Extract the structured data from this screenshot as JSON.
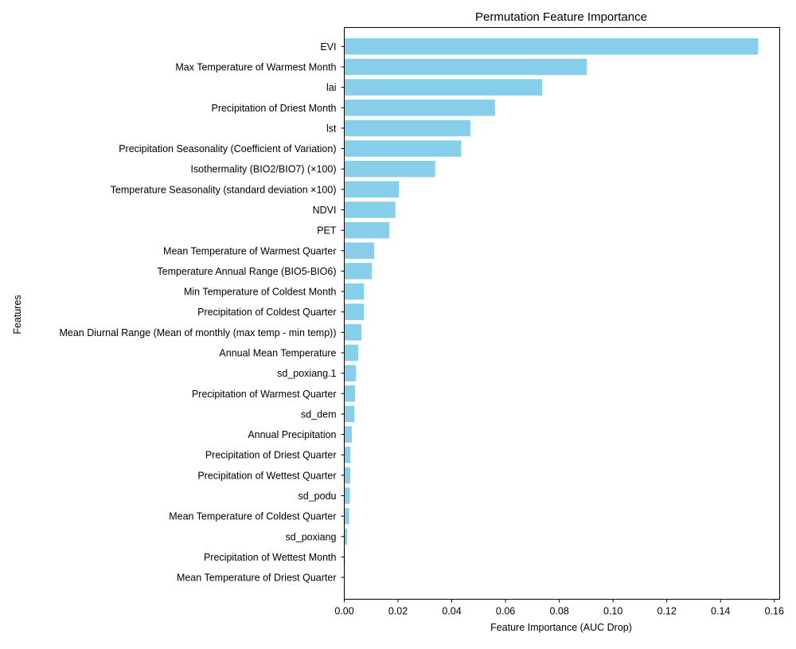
{
  "chart_data": {
    "type": "bar",
    "orientation": "horizontal",
    "title": "Permutation Feature Importance",
    "xlabel": "Feature Importance (AUC Drop)",
    "ylabel": "Features",
    "xlim": [
      0.0,
      0.162
    ],
    "xticks": [
      "0.00",
      "0.02",
      "0.04",
      "0.06",
      "0.08",
      "0.10",
      "0.12",
      "0.14",
      "0.16"
    ],
    "bar_color": "#87CEEB",
    "grid": false,
    "categories": [
      "EVI",
      "Max Temperature of Warmest Month",
      "lai",
      "Precipitation of Driest Month",
      "lst",
      "Precipitation Seasonality (Coefficient of Variation)",
      "Isothermality (BIO2/BIO7) (×100)",
      "Temperature Seasonality (standard deviation ×100)",
      "NDVI",
      "PET",
      "Mean Temperature of Warmest Quarter",
      "Temperature Annual Range (BIO5-BIO6)",
      "Min Temperature of Coldest Month",
      "Precipitation of Coldest Quarter",
      "Mean Diurnal Range (Mean of monthly (max temp - min temp))",
      "Annual Mean Temperature",
      "sd_poxiang.1",
      "Precipitation of Warmest Quarter",
      "sd_dem",
      "Annual Precipitation",
      "Precipitation of Driest Quarter",
      "Precipitation of Wettest Quarter",
      "sd_podu",
      "Mean Temperature of Coldest Quarter",
      "sd_poxiang",
      "Precipitation of Wettest Month",
      "Mean Temperature of Driest Quarter"
    ],
    "values": [
      0.154,
      0.0902,
      0.0736,
      0.0561,
      0.0469,
      0.0435,
      0.0338,
      0.0203,
      0.019,
      0.0167,
      0.0111,
      0.0102,
      0.0073,
      0.0073,
      0.0064,
      0.0052,
      0.0043,
      0.004,
      0.0037,
      0.0028,
      0.0023,
      0.0022,
      0.0021,
      0.0018,
      0.0011,
      0.0003,
      0.0001
    ]
  }
}
